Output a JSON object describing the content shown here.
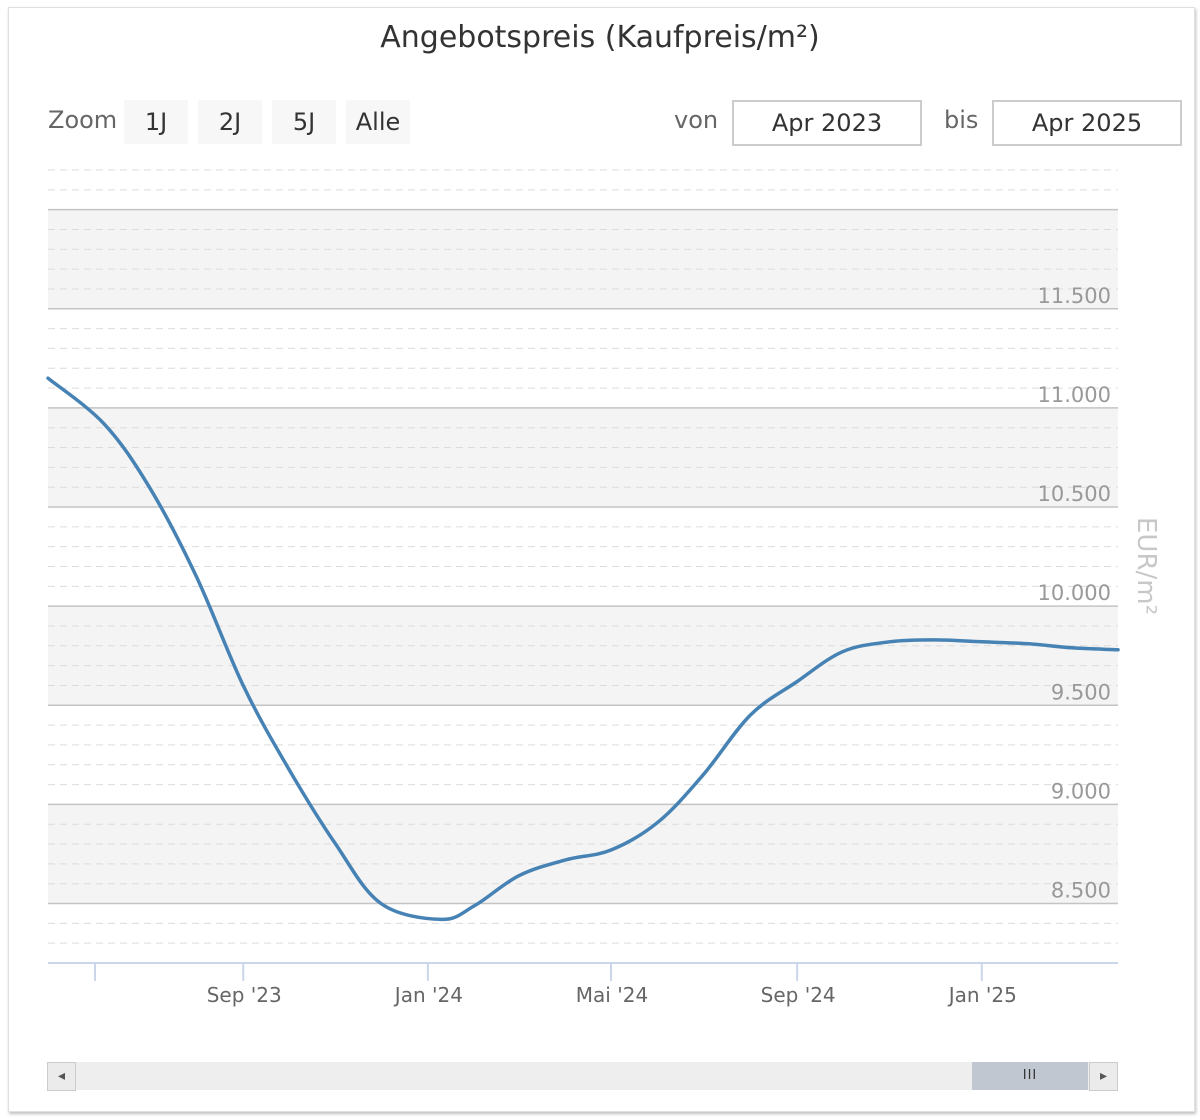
{
  "header": {
    "title": "Angebotspreis (Kaufpreis/m²)"
  },
  "range_selector": {
    "zoom_label": "Zoom",
    "buttons": [
      "1J",
      "2J",
      "5J",
      "Alle"
    ],
    "from_label": "von",
    "from_value": "Apr 2023",
    "to_label": "bis",
    "to_value": "Apr 2025"
  },
  "scrollbar": {
    "thumb_grip": "III",
    "left_arrow": "◂",
    "right_arrow": "▸"
  },
  "colors": {
    "series": "#4682b4",
    "band": "#f4f4f4",
    "axis_text": "#999999",
    "ylabel": "#c8c8c8"
  },
  "chart_data": {
    "type": "line",
    "title": "Angebotspreis (Kaufpreis/m²)",
    "ylabel": "EUR/m²",
    "xlabel": "",
    "ylim": [
      8200,
      12200
    ],
    "xlim": [
      "2023-04-25",
      "2025-04-01"
    ],
    "y_ticks": [
      8500,
      9000,
      9500,
      10000,
      10500,
      11000,
      11500
    ],
    "y_tick_labels": [
      "8.500",
      "9.000",
      "9.500",
      "10.000",
      "10.500",
      "11.000",
      "11.500"
    ],
    "x_ticks": [
      "2023-09-01",
      "2024-01-01",
      "2024-05-01",
      "2024-09-01",
      "2025-01-01"
    ],
    "x_tick_labels": [
      "Sep '23",
      "Jan '24",
      "Mai '24",
      "Sep '24",
      "Jan '25"
    ],
    "grid": true,
    "series": [
      {
        "x": [
          "2023-04-25",
          "2023-06-01",
          "2023-07-01",
          "2023-08-01",
          "2023-09-01",
          "2023-10-01",
          "2023-11-01",
          "2023-12-01",
          "2024-01-10",
          "2024-02-01",
          "2024-03-01",
          "2024-04-01",
          "2024-05-01",
          "2024-06-01",
          "2024-07-01",
          "2024-08-01",
          "2024-09-01",
          "2024-10-01",
          "2024-11-01",
          "2024-12-01",
          "2025-01-01",
          "2025-02-01",
          "2025-03-01",
          "2025-04-01"
        ],
        "y": [
          11150,
          10920,
          10600,
          10150,
          9600,
          9180,
          8800,
          8500,
          8420,
          8490,
          8640,
          8720,
          8770,
          8910,
          9150,
          9450,
          9620,
          9770,
          9820,
          9830,
          9820,
          9810,
          9790,
          9780
        ]
      }
    ]
  }
}
